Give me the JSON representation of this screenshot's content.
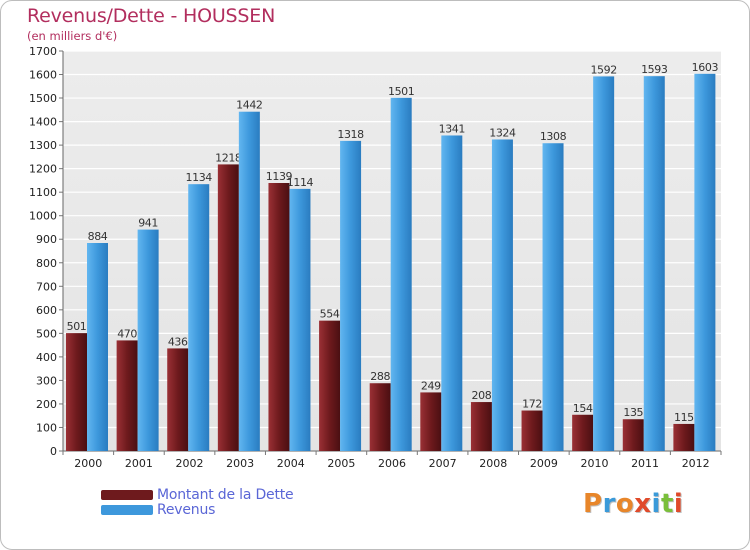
{
  "chart_data": {
    "type": "bar",
    "title": "Revenus/Dette - HOUSSEN",
    "subtitle": "(en milliers d'€)",
    "xlabel": "",
    "ylabel": "",
    "ylim": [
      0,
      1700
    ],
    "yticks": [
      0,
      100,
      200,
      300,
      400,
      500,
      600,
      700,
      800,
      900,
      1000,
      1100,
      1200,
      1300,
      1400,
      1500,
      1600,
      1700
    ],
    "grid": true,
    "categories": [
      "2000",
      "2001",
      "2002",
      "2003",
      "2004",
      "2005",
      "2006",
      "2007",
      "2008",
      "2009",
      "2010",
      "2011",
      "2012"
    ],
    "series": [
      {
        "name": "Montant de la Dette",
        "color": "#7a1f22",
        "values": [
          501,
          470,
          436,
          1218,
          1139,
          554,
          288,
          249,
          208,
          172,
          154,
          135,
          115
        ],
        "labels": [
          "501",
          "470",
          "436",
          "1218",
          "1139",
          "554",
          "288",
          "249",
          "208",
          "172",
          "154",
          "135",
          "115"
        ]
      },
      {
        "name": "Revenus",
        "color": "#3f9be0",
        "values": [
          884,
          941,
          1134,
          1442,
          1114,
          1318,
          1501,
          1341,
          1324,
          1308,
          1592,
          1593,
          1603
        ],
        "labels": [
          "884",
          "941",
          "1134",
          "1442",
          "1114",
          "1318",
          "1501",
          "1341",
          "1324",
          "1308",
          "1592",
          "1593",
          "1603"
        ]
      }
    ],
    "legend": "bottom-left"
  },
  "branding": {
    "logo_text": "Proxiti",
    "logo_colors": [
      "#e8862a",
      "#3a9ad9",
      "#e8862a",
      "#e04a2a",
      "#3a9ad9",
      "#7abf3a",
      "#e04a2a"
    ]
  }
}
